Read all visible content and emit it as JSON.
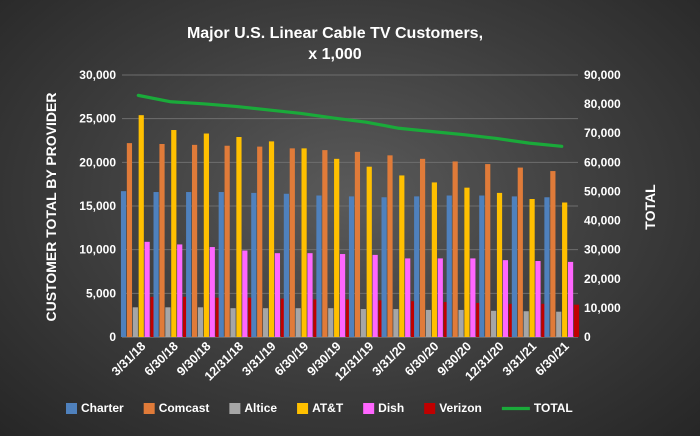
{
  "chart_data": {
    "type": "bar",
    "title": "Major U.S. Linear Cable TV Customers,",
    "subtitle": "x 1,000",
    "ylabel": "CUSTOMER TOTAL BY PROVIDER",
    "y2label": "TOTAL",
    "ylim": [
      0,
      30000
    ],
    "y2lim": [
      0,
      90000
    ],
    "yticks": [
      "0",
      "5,000",
      "10,000",
      "15,000",
      "20,000",
      "25,000",
      "30,000"
    ],
    "y2ticks": [
      "0",
      "10,000",
      "20,000",
      "30,000",
      "40,000",
      "50,000",
      "60,000",
      "70,000",
      "80,000",
      "90,000"
    ],
    "grid": true,
    "legend_position": "bottom",
    "categories": [
      "3/31/18",
      "6/30/18",
      "9/30/18",
      "12/31/18",
      "3/31/19",
      "6/30/19",
      "9/30/19",
      "12/31/19",
      "3/31/20",
      "6/30/20",
      "9/30/20",
      "12/31/20",
      "3/31/21",
      "6/30/21"
    ],
    "series": [
      {
        "name": "Charter",
        "type": "bar",
        "color": "#4f81bd",
        "values": [
          16700,
          16600,
          16600,
          16600,
          16500,
          16400,
          16200,
          16100,
          16000,
          16100,
          16200,
          16200,
          16100,
          16000
        ]
      },
      {
        "name": "Comcast",
        "type": "bar",
        "color": "#e07b39",
        "values": [
          22200,
          22100,
          22000,
          21900,
          21800,
          21600,
          21400,
          21200,
          20800,
          20400,
          20100,
          19800,
          19400,
          19000
        ]
      },
      {
        "name": "Altice",
        "type": "bar",
        "color": "#a6a6a6",
        "values": [
          3400,
          3400,
          3400,
          3300,
          3300,
          3300,
          3300,
          3200,
          3200,
          3100,
          3100,
          3000,
          2950,
          2900
        ]
      },
      {
        "name": "AT&T",
        "type": "bar",
        "color": "#ffc000",
        "values": [
          25400,
          23700,
          23300,
          22900,
          22400,
          21600,
          20400,
          19500,
          18500,
          17700,
          17100,
          16500,
          15800,
          15400
        ]
      },
      {
        "name": "Dish",
        "type": "bar",
        "color": "#ff66ff",
        "values": [
          10900,
          10600,
          10300,
          9900,
          9600,
          9600,
          9500,
          9400,
          9000,
          9000,
          9000,
          8800,
          8700,
          8600
        ]
      },
      {
        "name": "Verizon",
        "type": "bar",
        "color": "#c00000",
        "values": [
          4600,
          4600,
          4500,
          4500,
          4400,
          4300,
          4300,
          4200,
          4100,
          4000,
          3900,
          3800,
          3800,
          3700
        ]
      },
      {
        "name": "TOTAL",
        "type": "line",
        "axis": "y2",
        "color": "#1aaa3a",
        "values": [
          83000,
          80800,
          80100,
          79200,
          78000,
          76800,
          75200,
          73800,
          71700,
          70600,
          69500,
          68200,
          66600,
          65500
        ]
      }
    ]
  }
}
